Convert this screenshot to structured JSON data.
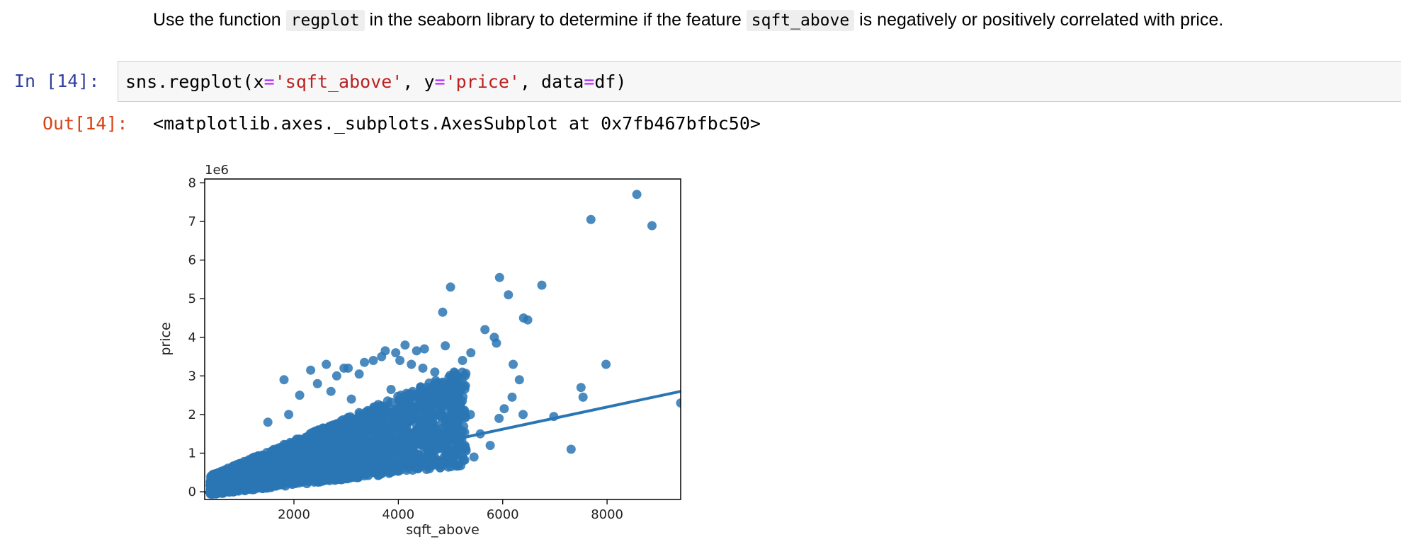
{
  "markdown": {
    "t1": "Use the function ",
    "code1": "regplot",
    "t2": " in the seaborn library to determine if the feature ",
    "code2": "sqft_above",
    "t3": " is negatively or positively correlated with price."
  },
  "in_prompt": "In [14]:",
  "out_prompt": "Out[14]:",
  "code": {
    "p1": "sns.regplot(x",
    "eq1": "=",
    "s1": "'sqft_above'",
    "p2": ", y",
    "eq2": "=",
    "s2": "'price'",
    "p3": ", data",
    "eq3": "=",
    "p4": "df)"
  },
  "output_text": "<matplotlib.axes._subplots.AxesSubplot at 0x7fb467bfbc50>",
  "chart_data": {
    "type": "scatter",
    "xlabel": "sqft_above",
    "ylabel": "price",
    "y_offset_label": "1e6",
    "xlim": [
      290,
      9410
    ],
    "ylim": [
      -200000,
      8100000
    ],
    "x_ticks": [
      2000,
      4000,
      6000,
      8000
    ],
    "x_tick_labels": [
      "2000",
      "4000",
      "6000",
      "8000"
    ],
    "y_ticks": [
      0,
      1000000,
      2000000,
      3000000,
      4000000,
      5000000,
      6000000,
      7000000,
      8000000
    ],
    "y_tick_labels": [
      "0",
      "1",
      "2",
      "3",
      "4",
      "5",
      "6",
      "7",
      "8"
    ],
    "regression_line": {
      "x": [
        290,
        9410
      ],
      "y": [
        -20000,
        2600000
      ]
    },
    "color": "#2a76b4",
    "points": {
      "x": [
        8570,
        7690,
        8860,
        6110,
        6750,
        5000,
        6400,
        6480,
        5940,
        4850,
        5660,
        5840,
        5880,
        7980,
        4130,
        4350,
        4500,
        4900,
        5390,
        5230,
        3950,
        3750,
        7500,
        7540,
        6980,
        7310,
        9410,
        6320,
        6200,
        6390,
        6180,
        6030,
        5930,
        5570,
        5760,
        5450,
        3520,
        3040,
        2320,
        3350,
        2620,
        2820,
        2960,
        3250,
        3680,
        4030,
        4250,
        5070,
        4470,
        4700,
        5280,
        2110,
        1810,
        2450,
        2710,
        3860,
        4800,
        5200,
        5380,
        4900,
        5150,
        4470,
        1900,
        1500,
        3100
      ],
      "y": [
        7700000,
        7050000,
        6890000,
        5100000,
        5350000,
        5300000,
        4500000,
        4450000,
        5550000,
        4650000,
        4200000,
        4000000,
        3850000,
        3300000,
        3800000,
        3650000,
        3700000,
        3780000,
        3600000,
        3400000,
        3600000,
        3650000,
        2700000,
        2450000,
        1950000,
        1100000,
        2300000,
        2900000,
        3300000,
        2000000,
        2450000,
        2150000,
        1900000,
        1500000,
        1200000,
        900000,
        3400000,
        3200000,
        3150000,
        3350000,
        3300000,
        3000000,
        3200000,
        3050000,
        3500000,
        3400000,
        3300000,
        3100000,
        3200000,
        3100000,
        3000000,
        2500000,
        2900000,
        2800000,
        2600000,
        2650000,
        2200000,
        2300000,
        2000000,
        1500000,
        1200000,
        950000,
        2000000,
        1800000,
        2400000
      ]
    }
  }
}
